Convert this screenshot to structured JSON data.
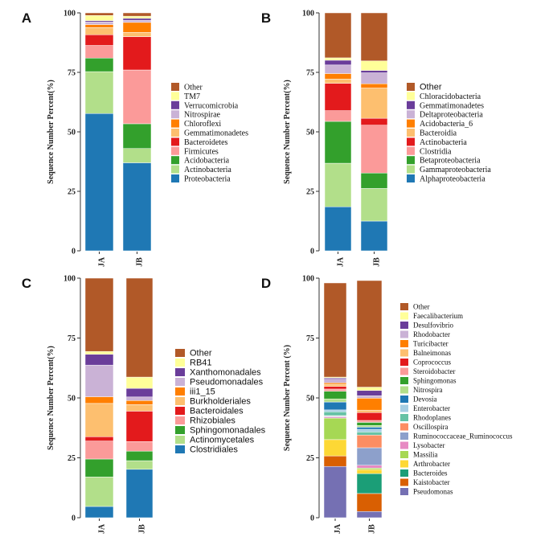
{
  "chart_data": [
    {
      "type": "bar",
      "stacked": true,
      "panel_label": "A",
      "ylabel": "Sequence Number Percent(%)",
      "yticks": [
        "0",
        "25",
        "50",
        "75",
        "100"
      ],
      "ylim": [
        0,
        100
      ],
      "categories": [
        "JA",
        "JB"
      ],
      "series": [
        {
          "name": "Proteobacteria",
          "color": "#1f78b4",
          "values": [
            57.7,
            37.0
          ]
        },
        {
          "name": "Actinobacteria",
          "color": "#b2df8a",
          "values": [
            17.6,
            6.0
          ]
        },
        {
          "name": "Acidobacteria",
          "color": "#33a02c",
          "values": [
            5.7,
            10.4
          ]
        },
        {
          "name": "Firmicutes",
          "color": "#fb9a99",
          "values": [
            5.3,
            22.6
          ]
        },
        {
          "name": "Bacteroidetes",
          "color": "#e31a1c",
          "values": [
            4.5,
            14.0
          ]
        },
        {
          "name": "Gemmatimonadetes",
          "color": "#fdbf6f",
          "values": [
            3.0,
            1.8
          ]
        },
        {
          "name": "Chloroflexi",
          "color": "#ff7f00",
          "values": [
            1.3,
            4.2
          ]
        },
        {
          "name": "Nitrospirae",
          "color": "#cab2d6",
          "values": [
            1.1,
            0.9
          ]
        },
        {
          "name": "Verrucomicrobia",
          "color": "#6a3d9a",
          "values": [
            0.5,
            0.8
          ]
        },
        {
          "name": "TM7",
          "color": "#ffff99",
          "values": [
            2.2,
            0.9
          ]
        },
        {
          "name": "Other",
          "color": "#b15928",
          "values": [
            1.1,
            1.4
          ]
        }
      ]
    },
    {
      "type": "bar",
      "stacked": true,
      "panel_label": "B",
      "ylabel": "Sequence Number Percent(%)",
      "yticks": [
        "0",
        "25",
        "50",
        "75",
        "100"
      ],
      "ylim": [
        0,
        100
      ],
      "categories": [
        "JA",
        "JB"
      ],
      "series": [
        {
          "name": "Alphaproteobacteria",
          "color": "#1f78b4",
          "values": [
            18.5,
            12.5
          ]
        },
        {
          "name": "Gammaproteobacteria",
          "color": "#b2df8a",
          "values": [
            18.3,
            13.7
          ]
        },
        {
          "name": "Betaproteobacteria",
          "color": "#33a02c",
          "values": [
            17.6,
            6.5
          ]
        },
        {
          "name": "Clostridia",
          "color": "#fb9a99",
          "values": [
            4.5,
            20.1
          ]
        },
        {
          "name": "Actinobacteria",
          "color": "#e31a1c",
          "values": [
            11.5,
            2.9
          ]
        },
        {
          "name": "Bacteroidia",
          "color": "#fdbf6f",
          "values": [
            1.8,
            12.7
          ]
        },
        {
          "name": "Acidobacteria_6",
          "color": "#ff7f00",
          "values": [
            2.3,
            1.8
          ]
        },
        {
          "name": "Deltaproteobacteria",
          "color": "#cab2d6",
          "values": [
            3.6,
            4.6
          ]
        },
        {
          "name": "Gemmatimonadetes",
          "color": "#6a3d9a",
          "values": [
            2.0,
            1.0
          ]
        },
        {
          "name": "Chloracidobacteria",
          "color": "#ffff99",
          "values": [
            1.0,
            4.0
          ]
        },
        {
          "name": "Other",
          "color": "#b15928",
          "values": [
            18.9,
            20.2
          ]
        }
      ]
    },
    {
      "type": "bar",
      "stacked": true,
      "panel_label": "C",
      "ylabel": "Sequence Number Percent(%)",
      "yticks": [
        "0",
        "25",
        "50",
        "75",
        "100"
      ],
      "ylim": [
        0,
        100
      ],
      "categories": [
        "JA",
        "JB"
      ],
      "series": [
        {
          "name": "Clostridiales",
          "color": "#1f78b4",
          "values": [
            4.7,
            20.2
          ]
        },
        {
          "name": "Actinomycetales",
          "color": "#b2df8a",
          "values": [
            12.3,
            3.6
          ]
        },
        {
          "name": "Sphingomonadales",
          "color": "#33a02c",
          "values": [
            7.5,
            4.0
          ]
        },
        {
          "name": "Rhizobiales",
          "color": "#fb9a99",
          "values": [
            7.5,
            4.0
          ]
        },
        {
          "name": "Bacteroidales",
          "color": "#e31a1c",
          "values": [
            1.8,
            12.7
          ]
        },
        {
          "name": "Burkholderiales",
          "color": "#fdbf6f",
          "values": [
            13.9,
            2.7
          ]
        },
        {
          "name": "iii1_15",
          "color": "#ff7f00",
          "values": [
            2.8,
            1.7
          ]
        },
        {
          "name": "Pseudomonadales",
          "color": "#cab2d6",
          "values": [
            13.2,
            1.5
          ]
        },
        {
          "name": "Xanthomonadales",
          "color": "#6a3d9a",
          "values": [
            4.5,
            3.6
          ]
        },
        {
          "name": "RB41",
          "color": "#ffff99",
          "values": [
            1.2,
            4.7
          ]
        },
        {
          "name": "Other",
          "color": "#b15928",
          "values": [
            30.6,
            41.3
          ]
        }
      ]
    },
    {
      "type": "bar",
      "stacked": true,
      "panel_label": "D",
      "ylabel": "Sequence Number Percent (%)",
      "yticks": [
        "0",
        "25",
        "50",
        "75",
        "100"
      ],
      "ylim": [
        0,
        100
      ],
      "categories": [
        "JA",
        "JB"
      ],
      "series": [
        {
          "name": "Pseudomonas",
          "color": "#7570b3",
          "values": [
            21.4,
            2.6
          ]
        },
        {
          "name": "Kaistobacter",
          "color": "#d95f02",
          "values": [
            4.4,
            7.5
          ]
        },
        {
          "name": "Bacteroides",
          "color": "#1b9e77",
          "values": [
            0.0,
            8.3
          ]
        },
        {
          "name": "Arthrobacter",
          "color": "#fdd835",
          "values": [
            6.8,
            1.7
          ]
        },
        {
          "name": "Massilia",
          "color": "#a6d854",
          "values": [
            9.0,
            0.6
          ]
        },
        {
          "name": "Lysobacter",
          "color": "#e78ac3",
          "values": [
            0.5,
            1.2
          ]
        },
        {
          "name": "Ruminococcaceae_Ruminococcus",
          "color": "#8da0cb",
          "values": [
            0.3,
            7.3
          ]
        },
        {
          "name": "Oscillospira",
          "color": "#fc8d62",
          "values": [
            0.2,
            5.3
          ]
        },
        {
          "name": "Rhodoplanes",
          "color": "#66c2a5",
          "values": [
            1.6,
            1.3
          ]
        },
        {
          "name": "Enterobacter",
          "color": "#a6cee3",
          "values": [
            0.8,
            1.1
          ]
        },
        {
          "name": "Devosia",
          "color": "#1f78b4",
          "values": [
            3.3,
            0.9
          ]
        },
        {
          "name": "Nitrospira",
          "color": "#b2df8a",
          "values": [
            1.3,
            0.7
          ]
        },
        {
          "name": "Sphingomonas",
          "color": "#33a02c",
          "values": [
            3.2,
            1.3
          ]
        },
        {
          "name": "Steroidobacter",
          "color": "#fb9a99",
          "values": [
            0.9,
            0.8
          ]
        },
        {
          "name": "Coprococcus",
          "color": "#e31a1c",
          "values": [
            1.1,
            3.3
          ]
        },
        {
          "name": "Balneimonas",
          "color": "#fdbf6f",
          "values": [
            0.9,
            1.0
          ]
        },
        {
          "name": "Turicibacter",
          "color": "#ff7f00",
          "values": [
            0.6,
            5.0
          ]
        },
        {
          "name": "Rhodobacter",
          "color": "#cab2d6",
          "values": [
            1.5,
            1.0
          ]
        },
        {
          "name": "Desulfovibrio",
          "color": "#6a3d9a",
          "values": [
            0.5,
            2.2
          ]
        },
        {
          "name": "Faecalibacterium",
          "color": "#ffff99",
          "values": [
            0.4,
            1.4
          ]
        },
        {
          "name": "Other",
          "color": "#b15928",
          "values": [
            39.3,
            44.5
          ]
        }
      ]
    }
  ]
}
